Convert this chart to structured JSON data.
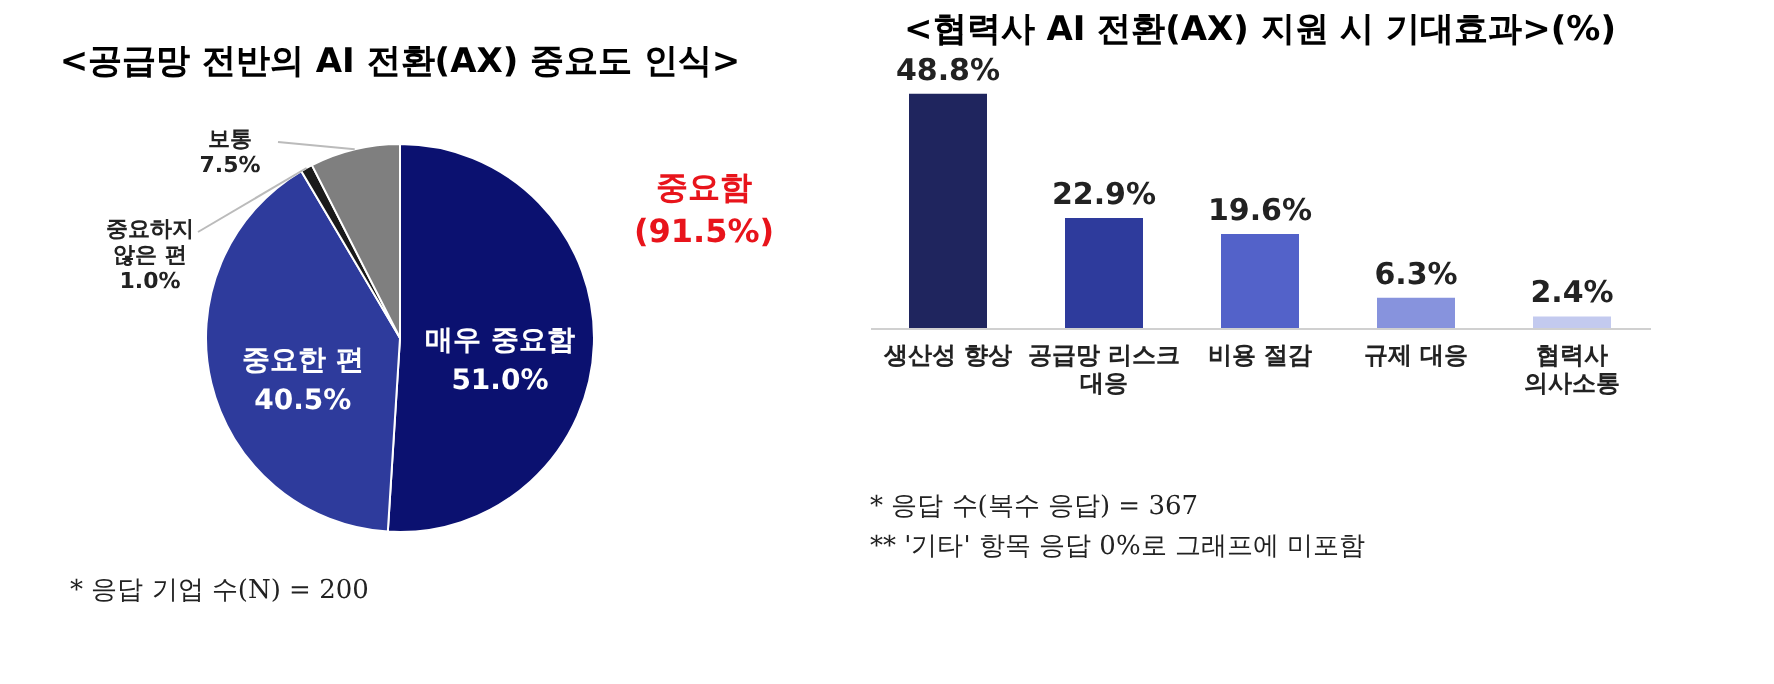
{
  "chart_data": [
    {
      "type": "pie",
      "title": "<공급망 전반의 AI 전환(AX) 중요도 인식>",
      "categories": [
        "매우 중요함",
        "중요한 편",
        "중요하지 않은 편",
        "보통"
      ],
      "values": [
        51.0,
        40.5,
        1.0,
        7.5
      ],
      "colors": [
        "#0b1170",
        "#2e3b9c",
        "#1a1a1a",
        "#7f7f7f"
      ],
      "value_labels": [
        "51.0%",
        "40.5%",
        "1.0%",
        "7.5%"
      ],
      "legend": false,
      "annotations": [
        "중요함\n(91.5%)",
        "* 응답 기업 수(N) = 200"
      ]
    },
    {
      "type": "bar",
      "title": "<협력사 AI 전환(AX) 지원 시 기대효과>(%)",
      "categories": [
        "생산성 향상",
        "공급망 리스크\n대응",
        "비용 절감",
        "규제 대응",
        "협력사\n의사소통"
      ],
      "values": [
        48.8,
        22.9,
        19.6,
        6.3,
        2.4
      ],
      "colors": [
        "#1f255e",
        "#2e3b9c",
        "#5362c9",
        "#8793dd",
        "#c3caef"
      ],
      "value_labels": [
        "48.8%",
        "22.9%",
        "19.6%",
        "6.3%",
        "2.4%"
      ],
      "grid": false,
      "legend": false,
      "tick_labels": "x",
      "annotations": [
        "* 응답 수(복수 응답) = 367",
        "** '기타' 항목 응답 0%로 그래프에 미포함"
      ]
    }
  ]
}
